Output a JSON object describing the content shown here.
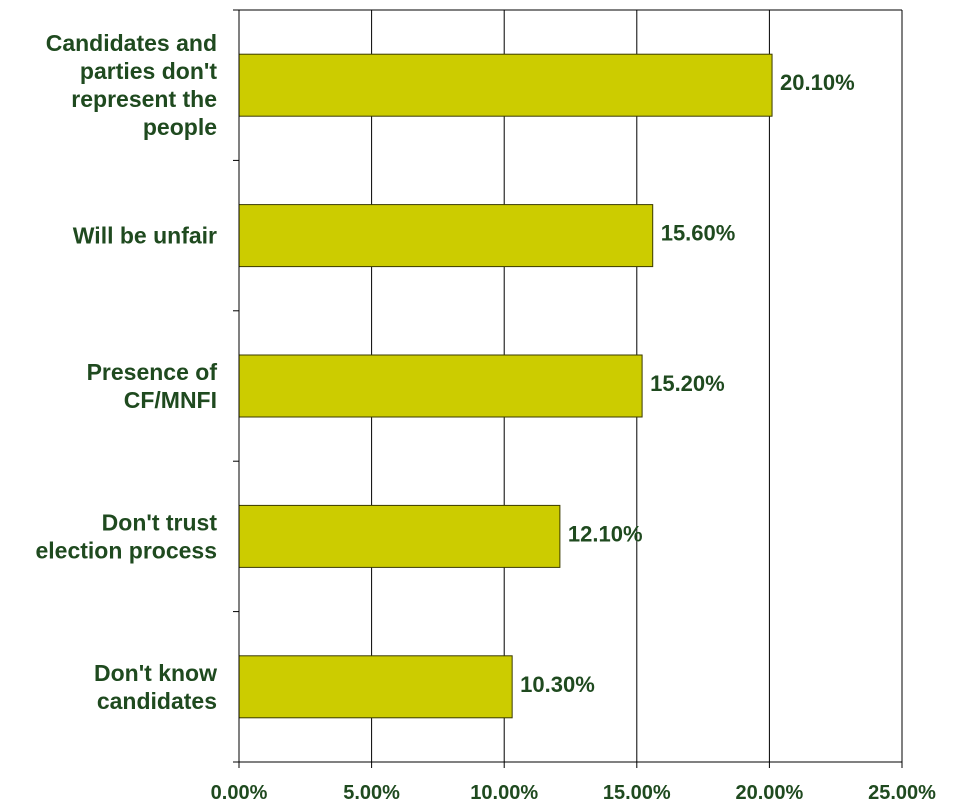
{
  "chart_data": {
    "type": "bar",
    "orientation": "horizontal",
    "categories": [
      [
        "Candidates and",
        "parties don't",
        "represent the",
        "people"
      ],
      [
        "Will be unfair"
      ],
      [
        "Presence of",
        "CF/MNFI"
      ],
      [
        "Don't trust",
        "election process"
      ],
      [
        "Don't know",
        "candidates"
      ]
    ],
    "values": [
      20.1,
      15.6,
      15.2,
      12.1,
      10.3
    ],
    "data_labels": [
      "20.10%",
      "15.60%",
      "15.20%",
      "12.10%",
      "10.30%"
    ],
    "xlim": [
      0,
      25
    ],
    "x_ticks": [
      0,
      5,
      10,
      15,
      20,
      25
    ],
    "x_tick_labels": [
      "0.00%",
      "5.00%",
      "10.00%",
      "15.00%",
      "20.00%",
      "25.00%"
    ],
    "grid": "vertical",
    "colors": {
      "bar": "#cccc00",
      "bar_edge": "#3a3a00",
      "text": "#1f4a1f",
      "axis": "#000000"
    }
  }
}
